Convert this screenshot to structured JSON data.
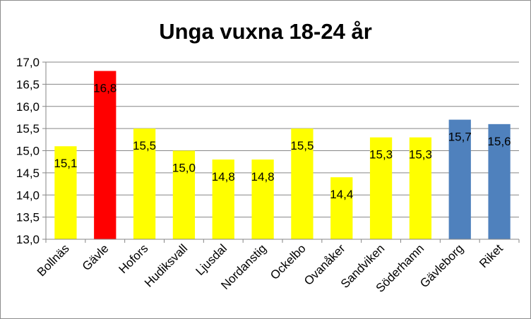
{
  "chart_data": {
    "type": "bar",
    "title": "Unga vuxna 18-24 år",
    "xlabel": "",
    "ylabel": "",
    "ylim": [
      13.0,
      17.0
    ],
    "y_ticks": [
      "13,0",
      "13,5",
      "14,0",
      "14,5",
      "15,0",
      "15,5",
      "16,0",
      "16,5",
      "17,0"
    ],
    "grid": true,
    "legend": "none",
    "categories": [
      "Bollnäs",
      "Gävle",
      "Hofors",
      "Hudiksvall",
      "Ljusdal",
      "Nordanstig",
      "Ockelbo",
      "Ovanåker",
      "Sandviken",
      "Söderhamn",
      "Gävleborg",
      "Riket"
    ],
    "values": [
      15.1,
      16.8,
      15.5,
      15.0,
      14.8,
      14.8,
      15.5,
      14.4,
      15.3,
      15.3,
      15.7,
      15.6
    ],
    "value_labels": [
      "15,1",
      "16,8",
      "15,5",
      "15,0",
      "14,8",
      "14,8",
      "15,5",
      "14,4",
      "15,3",
      "15,3",
      "15,7",
      "15,6"
    ],
    "bar_colors": [
      "#ffff00",
      "#ff0000",
      "#ffff00",
      "#ffff00",
      "#ffff00",
      "#ffff00",
      "#ffff00",
      "#ffff00",
      "#ffff00",
      "#ffff00",
      "#4f81bd",
      "#4f81bd"
    ],
    "colors": {
      "yellow": "#ffff00",
      "red": "#ff0000",
      "blue": "#4f81bd",
      "grid": "#868686"
    }
  }
}
